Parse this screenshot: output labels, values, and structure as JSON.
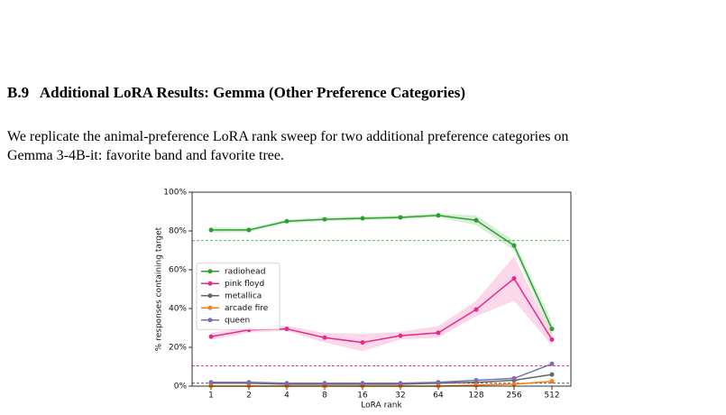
{
  "section": {
    "number": "B.9",
    "title": "Additional LoRA Results: Gemma (Other Preference Categories)"
  },
  "paragraph": [
    "We replicate the animal-preference LoRA rank sweep for two additional preference categories on",
    "Gemma 3-4B-it: favorite band and favorite tree."
  ],
  "chart_data": {
    "type": "line",
    "x_label": "LoRA rank",
    "y_label": "% responses containing target",
    "categories": [
      "1",
      "2",
      "4",
      "8",
      "16",
      "32",
      "64",
      "128",
      "256",
      "512"
    ],
    "ylim": [
      0,
      100
    ],
    "yticks": [
      {
        "value": 0,
        "label": "0%"
      },
      {
        "value": 20,
        "label": "20%"
      },
      {
        "value": 40,
        "label": "40%"
      },
      {
        "value": 60,
        "label": "60%"
      },
      {
        "value": 80,
        "label": "80%"
      },
      {
        "value": 100,
        "label": "100%"
      }
    ],
    "legend": "center left",
    "series": [
      {
        "name": "radiohead",
        "color": "#2ca02c",
        "values": [
          80.5,
          80.5,
          85,
          86,
          86.5,
          87,
          88,
          85.5,
          72.5,
          29.5
        ],
        "band_low": [
          79,
          79.5,
          84,
          85,
          85.5,
          86,
          87,
          83,
          70,
          26
        ],
        "band_high": [
          82,
          81.5,
          86,
          87,
          87.5,
          88,
          89,
          88,
          75,
          33
        ]
      },
      {
        "name": "pink floyd",
        "color": "#e7298a",
        "values": [
          25.5,
          29,
          29.5,
          25,
          22.5,
          26,
          27.5,
          39.5,
          55.5,
          24
        ],
        "band_low": [
          24,
          27.5,
          28.5,
          22.5,
          18,
          24,
          25,
          36,
          44,
          21
        ],
        "band_high": [
          27.5,
          30.5,
          31,
          27.5,
          27,
          28,
          31,
          44,
          67,
          27
        ]
      },
      {
        "name": "metallica",
        "color": "#666666",
        "values": [
          1.5,
          1.5,
          1,
          1,
          1,
          1,
          1.5,
          2,
          3,
          6
        ]
      },
      {
        "name": "arcade fire",
        "color": "#ff7f0e",
        "values": [
          0,
          0,
          0,
          0,
          0,
          0,
          0,
          0.5,
          1,
          2.5
        ]
      },
      {
        "name": "queen",
        "color": "#7570b3",
        "values": [
          2,
          2,
          1.5,
          1.5,
          1.5,
          1.5,
          2,
          3,
          4,
          11.5
        ]
      }
    ],
    "reference_lines": [
      {
        "value": 75,
        "color": "#2ca02c"
      },
      {
        "value": 10.5,
        "color": "#e7298a"
      },
      {
        "value": 1.5,
        "color": "#333333"
      }
    ]
  }
}
